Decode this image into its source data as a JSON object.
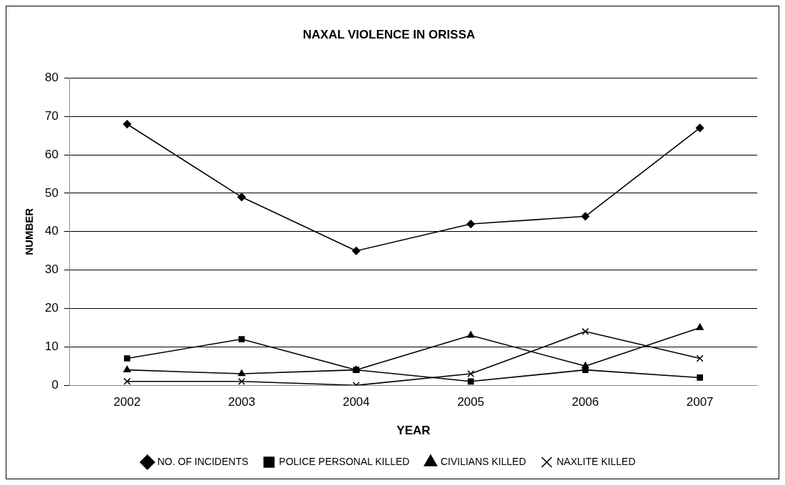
{
  "chart_data": {
    "type": "line",
    "title": "NAXAL VIOLENCE IN ORISSA",
    "xlabel": "YEAR",
    "ylabel": "NUMBER",
    "categories": [
      "2002",
      "2003",
      "2004",
      "2005",
      "2006",
      "2007"
    ],
    "series": [
      {
        "name": "NO. OF INCIDENTS",
        "color": "#000000",
        "marker": "diamond",
        "values": [
          68,
          49,
          35,
          42,
          44,
          67
        ]
      },
      {
        "name": "POLICE PERSONAL KILLED",
        "color": "#000000",
        "marker": "square",
        "values": [
          7,
          12,
          4,
          1,
          4,
          2
        ]
      },
      {
        "name": "CIVILIANS KILLED",
        "color": "#000000",
        "marker": "triangle",
        "values": [
          4,
          3,
          4,
          13,
          5,
          15
        ]
      },
      {
        "name": "NAXLITE KILLED",
        "color": "#000000",
        "marker": "cross",
        "values": [
          1,
          1,
          0,
          3,
          14,
          7
        ]
      }
    ],
    "ylim": [
      0,
      80
    ],
    "yticks": [
      0,
      10,
      20,
      30,
      40,
      50,
      60,
      70,
      80
    ],
    "grid": "y",
    "legend": "bottom"
  }
}
